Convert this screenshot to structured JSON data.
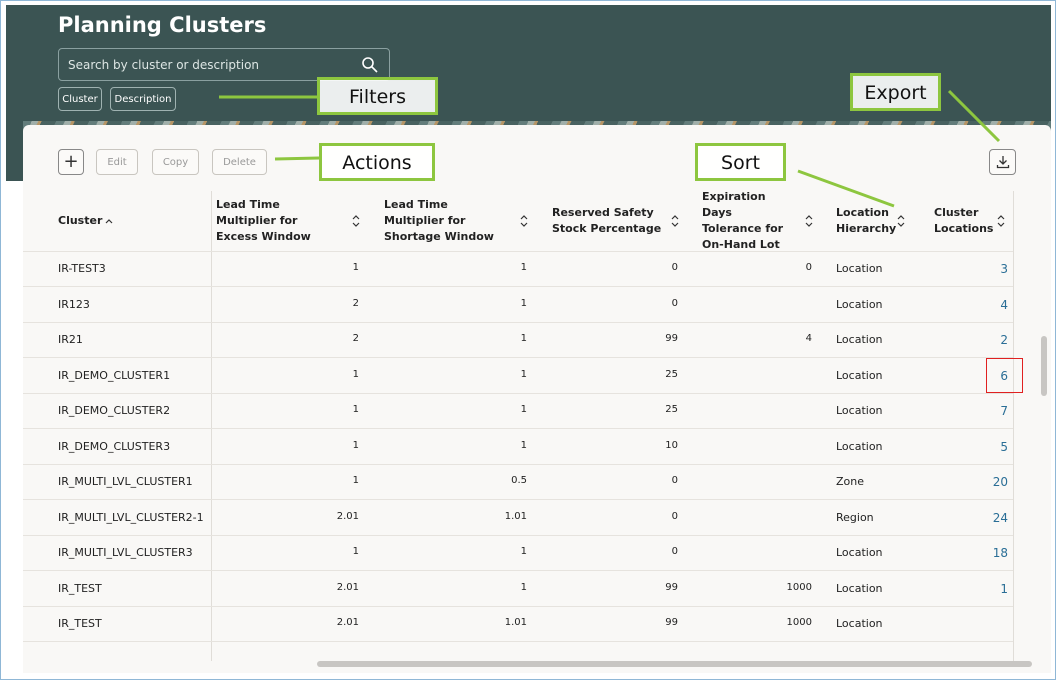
{
  "header": {
    "title": "Planning Clusters",
    "search_placeholder": "Search by cluster or description",
    "filters": [
      "Cluster",
      "Description"
    ]
  },
  "callouts": {
    "filters": "Filters",
    "export": "Export",
    "actions": "Actions",
    "sort": "Sort"
  },
  "toolbar": {
    "buttons": [
      "Edit",
      "Copy",
      "Delete"
    ]
  },
  "table": {
    "columns": [
      "Cluster",
      "Lead Time Multiplier for Excess Window",
      "Lead Time Multiplier for Shortage Window",
      "Reserved Safety Stock Percentage",
      "Expiration Days Tolerance for On-Hand Lot",
      "Location Hierarchy",
      "Cluster Locations"
    ],
    "rows": [
      [
        "IR-TEST3",
        1,
        1,
        0,
        0,
        "Location",
        3
      ],
      [
        "IR123",
        2,
        1,
        0,
        null,
        "Location",
        4
      ],
      [
        "IR21",
        2,
        1,
        99,
        4,
        "Location",
        2
      ],
      [
        "IR_DEMO_CLUSTER1",
        1,
        1,
        25,
        null,
        "Location",
        6
      ],
      [
        "IR_DEMO_CLUSTER2",
        1,
        1,
        25,
        null,
        "Location",
        7
      ],
      [
        "IR_DEMO_CLUSTER3",
        1,
        1,
        10,
        null,
        "Location",
        5
      ],
      [
        "IR_MULTI_LVL_CLUSTER1",
        1,
        0.5,
        0,
        null,
        "Zone",
        20
      ],
      [
        "IR_MULTI_LVL_CLUSTER2-1",
        2.01,
        1.01,
        0,
        null,
        "Region",
        24
      ],
      [
        "IR_MULTI_LVL_CLUSTER3",
        1,
        1,
        0,
        null,
        "Location",
        18
      ],
      [
        "IR_TEST",
        2.01,
        1,
        99,
        1000,
        "Location",
        1
      ],
      [
        "IR_TEST",
        2.01,
        1.01,
        99,
        1000,
        "Location",
        null
      ]
    ]
  }
}
